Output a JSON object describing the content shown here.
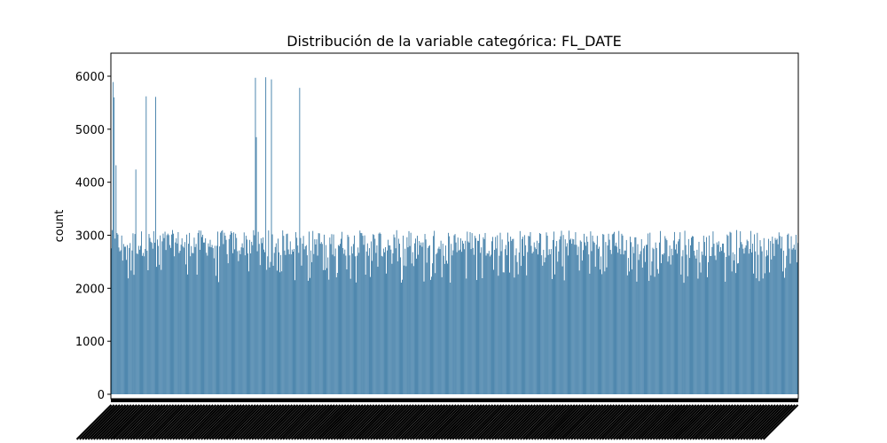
{
  "chart_data": {
    "type": "bar",
    "title": "Distribución de la variable categórica: FL_DATE",
    "xlabel": "",
    "ylabel": "count",
    "ylim": [
      0,
      6420
    ],
    "yticks": [
      0,
      1000,
      2000,
      3000,
      4000,
      5000,
      6000
    ],
    "bar_color": "#3274a1",
    "grid": false,
    "legend": "none",
    "categories_note_shown": "x tick labels are dense rotated dates (unreadable)",
    "spikes": [
      {
        "index": 2,
        "value": 5890
      },
      {
        "index": 3,
        "value": 5600
      },
      {
        "index": 5,
        "value": 4320
      },
      {
        "index": 26,
        "value": 4240
      },
      {
        "index": 37,
        "value": 5620
      },
      {
        "index": 47,
        "value": 5610
      },
      {
        "index": 153,
        "value": 5970
      },
      {
        "index": 154,
        "value": 4850
      },
      {
        "index": 164,
        "value": 5980
      },
      {
        "index": 170,
        "value": 5940
      },
      {
        "index": 200,
        "value": 5780
      }
    ],
    "num_bars": 730,
    "typical_range": [
      2100,
      3100
    ]
  }
}
